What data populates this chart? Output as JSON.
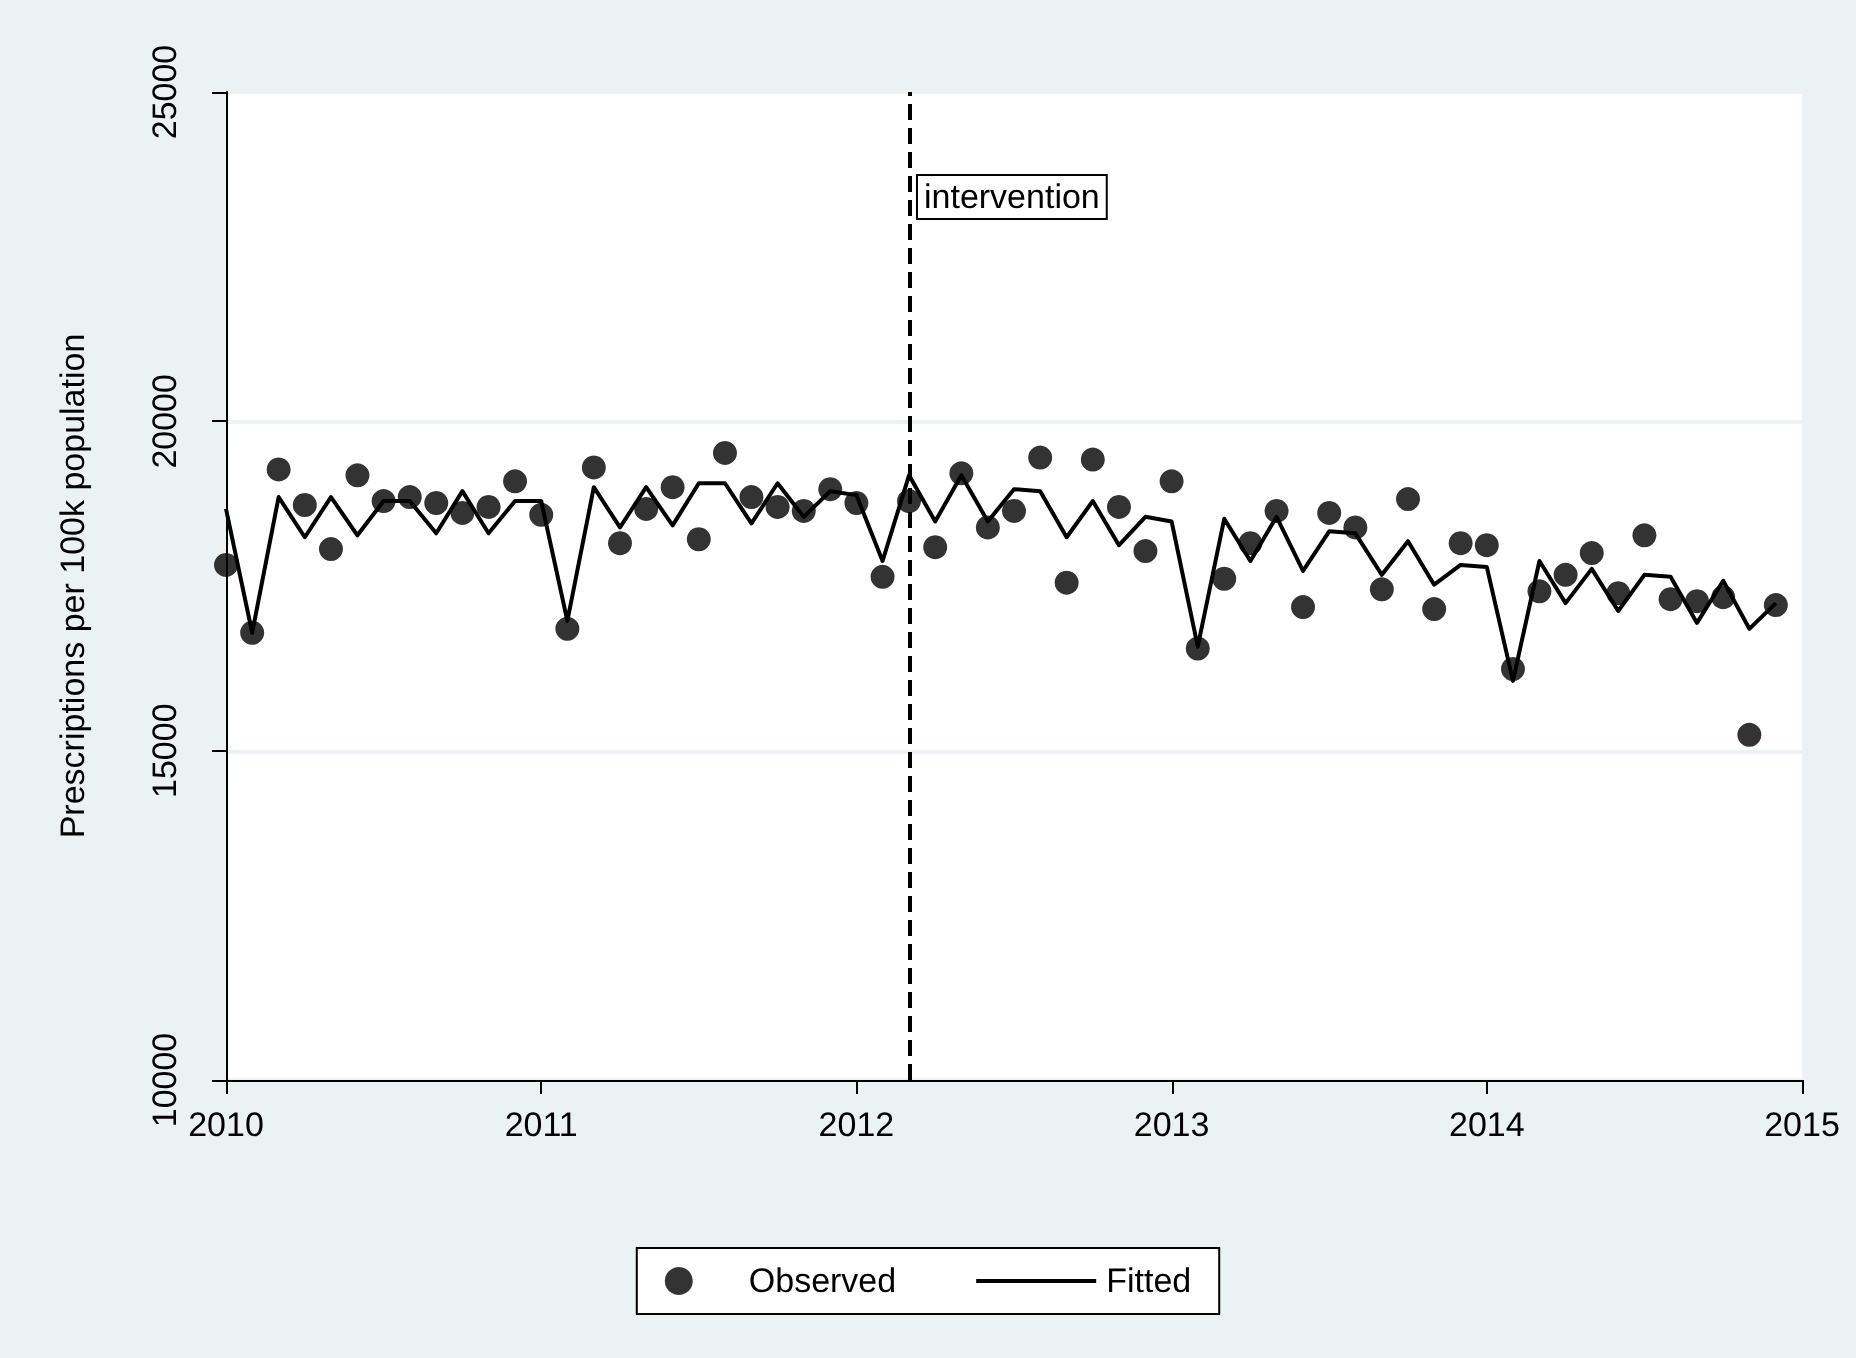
{
  "chart_data": {
    "type": "scatter",
    "ylabel": "Prescriptions per 100k population",
    "x": [
      2010,
      2010.083,
      2010.167,
      2010.25,
      2010.333,
      2010.417,
      2010.5,
      2010.583,
      2010.667,
      2010.75,
      2010.833,
      2010.917,
      2011,
      2011.083,
      2011.167,
      2011.25,
      2011.333,
      2011.417,
      2011.5,
      2011.583,
      2011.667,
      2011.75,
      2011.833,
      2011.917,
      2012,
      2012.083,
      2012.167,
      2012.25,
      2012.333,
      2012.417,
      2012.5,
      2012.583,
      2012.667,
      2012.75,
      2012.833,
      2012.917,
      2013,
      2013.083,
      2013.167,
      2013.25,
      2013.333,
      2013.417,
      2013.5,
      2013.583,
      2013.667,
      2013.75,
      2013.833,
      2013.917,
      2014,
      2014.083,
      2014.167,
      2014.25,
      2014.333,
      2014.417,
      2014.5,
      2014.583,
      2014.667,
      2014.75,
      2014.833,
      2014.917
    ],
    "series": [
      {
        "name": "Observed",
        "marker": "circle",
        "color": "#000000",
        "values": [
          17820,
          16790,
          19270,
          18730,
          18060,
          19180,
          18790,
          18850,
          18760,
          18610,
          18700,
          19090,
          18580,
          16850,
          19300,
          18150,
          18670,
          19000,
          18210,
          19520,
          18850,
          18700,
          18640,
          18970,
          18760,
          17640,
          18790,
          18090,
          19210,
          18390,
          18640,
          19450,
          17550,
          19420,
          18700,
          18030,
          19090,
          16550,
          17610,
          18150,
          18640,
          17180,
          18610,
          18390,
          17450,
          18820,
          17150,
          18150,
          18120,
          16240,
          17420,
          17670,
          18000,
          17390,
          18270,
          17300,
          17270,
          17330,
          15240,
          17210
        ]
      },
      {
        "name": "Fitted",
        "type": "line",
        "marker": "none",
        "line_style": "solid",
        "color": "#000000",
        "values": [
          18670,
          16790,
          18850,
          18240,
          18850,
          18270,
          18790,
          18790,
          18300,
          18940,
          18300,
          18790,
          18790,
          16970,
          19000,
          18390,
          19000,
          18420,
          19060,
          19060,
          18450,
          19060,
          18550,
          18940,
          18880,
          17880,
          19180,
          18480,
          19180,
          18480,
          18970,
          18940,
          18240,
          18790,
          18120,
          18550,
          18480,
          16580,
          18520,
          17880,
          18550,
          17730,
          18330,
          18300,
          17670,
          18180,
          17520,
          17820,
          17790,
          16060,
          17880,
          17240,
          17760,
          17120,
          17670,
          17640,
          16940,
          17580,
          16850,
          17240
        ]
      }
    ],
    "xlim": [
      2010,
      2015
    ],
    "xticks": [
      2010,
      2011,
      2012,
      2013,
      2014,
      2015
    ],
    "ylim": [
      10000,
      25000
    ],
    "yticks": [
      10000,
      15000,
      20000,
      25000
    ],
    "grid": "y",
    "legend": "bottom",
    "ref_lines": [
      {
        "axis": "x",
        "value": 2012.17,
        "label": "intervention",
        "color": "#000000",
        "line_style": "dashed"
      }
    ]
  }
}
